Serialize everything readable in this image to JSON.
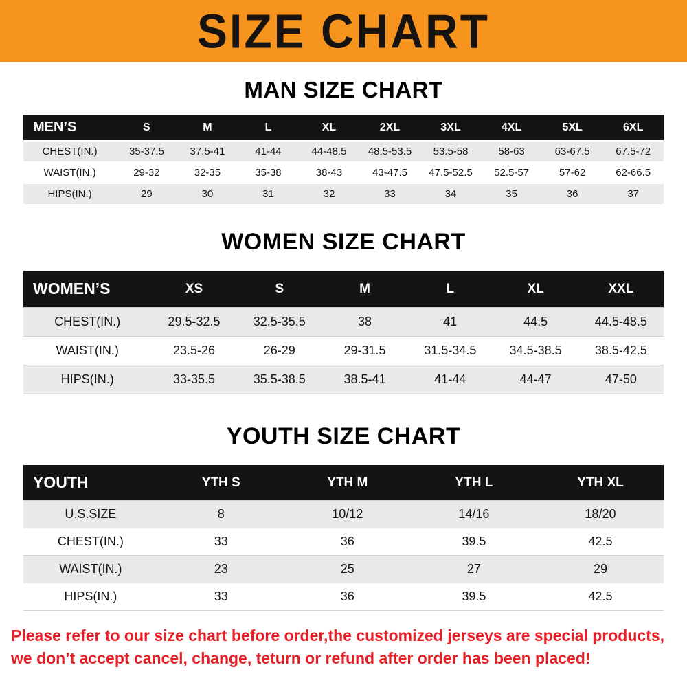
{
  "banner": {
    "title": "SIZE CHART"
  },
  "colors": {
    "banner-bg": "#f7941e",
    "banner-text": "#161310",
    "table-header-bg": "#141414",
    "table-header-text": "#ffffff",
    "row-stripe": "#e9e9e9",
    "note-red": "#e61e25"
  },
  "chart_data": [
    {
      "type": "table",
      "title": "MAN SIZE CHART",
      "columns": [
        "MEN’S",
        "S",
        "M",
        "L",
        "XL",
        "2XL",
        "3XL",
        "4XL",
        "5XL",
        "6XL"
      ],
      "rows": [
        [
          "CHEST(IN.)",
          "35-37.5",
          "37.5-41",
          "41-44",
          "44-48.5",
          "48.5-53.5",
          "53.5-58",
          "58-63",
          "63-67.5",
          "67.5-72"
        ],
        [
          "WAIST(IN.)",
          "29-32",
          "32-35",
          "35-38",
          "38-43",
          "43-47.5",
          "47.5-52.5",
          "52.5-57",
          "57-62",
          "62-66.5"
        ],
        [
          "HIPS(IN.)",
          "29",
          "30",
          "31",
          "32",
          "33",
          "34",
          "35",
          "36",
          "37"
        ]
      ]
    },
    {
      "type": "table",
      "title": "WOMEN SIZE CHART",
      "columns": [
        "WOMEN’S",
        "XS",
        "S",
        "M",
        "L",
        "XL",
        "XXL"
      ],
      "rows": [
        [
          "CHEST(IN.)",
          "29.5-32.5",
          "32.5-35.5",
          "38",
          "41",
          "44.5",
          "44.5-48.5"
        ],
        [
          "WAIST(IN.)",
          "23.5-26",
          "26-29",
          "29-31.5",
          "31.5-34.5",
          "34.5-38.5",
          "38.5-42.5"
        ],
        [
          "HIPS(IN.)",
          "33-35.5",
          "35.5-38.5",
          "38.5-41",
          "41-44",
          "44-47",
          "47-50"
        ]
      ]
    },
    {
      "type": "table",
      "title": "YOUTH SIZE CHART",
      "columns": [
        "YOUTH",
        "YTH S",
        "YTH M",
        "YTH L",
        "YTH XL"
      ],
      "rows": [
        [
          "U.S.SIZE",
          "8",
          "10/12",
          "14/16",
          "18/20"
        ],
        [
          "CHEST(IN.)",
          "33",
          "36",
          "39.5",
          "42.5"
        ],
        [
          "WAIST(IN.)",
          "23",
          "25",
          "27",
          "29"
        ],
        [
          "HIPS(IN.)",
          "33",
          "36",
          "39.5",
          "42.5"
        ]
      ]
    }
  ],
  "note": {
    "line1": "Please refer to our size chart before order,the customized jerseys are special products,",
    "line2": "we don’t accept cancel, change, teturn or refund after order has been placed!"
  }
}
